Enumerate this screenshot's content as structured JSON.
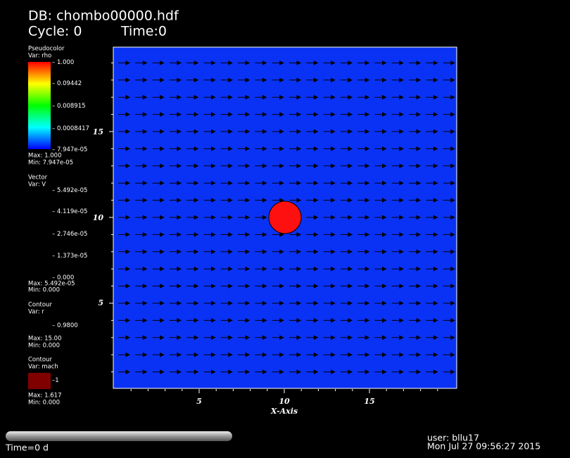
{
  "header": {
    "database": "DB: chombo00000.hdf",
    "cycle": "Cycle: 0",
    "time": "Time:0"
  },
  "legends": [
    {
      "plot": "Pseudocolor",
      "var": "Var: rho",
      "ticks": [
        "1.000",
        "0.09442",
        "0.008915",
        "0.0008417",
        "7.947e-05"
      ],
      "max": "Max:  1.000",
      "min": "Min:  7.947e-05"
    },
    {
      "plot": "Vector",
      "var": "Var: V",
      "ticks": [
        "5.492e-05",
        "4.119e-05",
        "2.746e-05",
        "1.373e-05",
        "0.000"
      ],
      "max": "Max:  5.492e-05",
      "min": "Min:  0.000"
    },
    {
      "plot": "Contour",
      "var": "Var: r",
      "ticks": [
        "0.9800"
      ],
      "max": "Max:  15.00",
      "min": "Min:  0.000"
    },
    {
      "plot": "Contour",
      "var": "Var: mach",
      "ticks": [
        "1"
      ],
      "max": "Max:  1.617",
      "min": "Min:  0.000"
    }
  ],
  "axes": {
    "x_label": "X-Axis",
    "x_ticks": [
      "5",
      "10",
      "15"
    ],
    "y_ticks": [
      "15",
      "10",
      "5"
    ]
  },
  "footer": {
    "time": "Time=0 d",
    "user": "user: bllu17",
    "date": "Mon Jul 27 09:56:27 2015"
  }
}
